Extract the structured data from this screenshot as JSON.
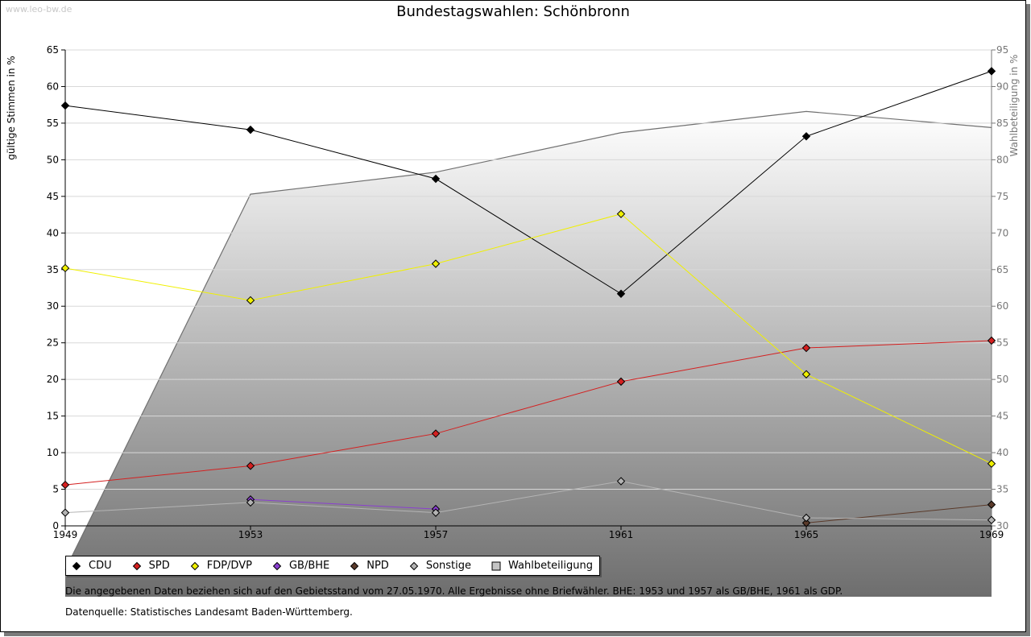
{
  "watermark": "www.leo-bw.de",
  "chart_data": {
    "type": "line",
    "title": "Bundestagswahlen: Schönbronn",
    "ylabel": "gültige Stimmen in %",
    "y2label": "Wahlbeteiligung in %",
    "ylim": [
      0,
      65
    ],
    "y2lim": [
      30,
      95
    ],
    "yticks": [
      0,
      5,
      10,
      15,
      20,
      25,
      30,
      35,
      40,
      45,
      50,
      55,
      60,
      65
    ],
    "y2ticks": [
      30,
      35,
      40,
      45,
      50,
      55,
      60,
      65,
      70,
      75,
      80,
      85,
      90,
      95
    ],
    "x": [
      "1949",
      "1953",
      "1957",
      "1961",
      "1965",
      "1969"
    ],
    "series": [
      {
        "name": "CDU",
        "color": "#000000",
        "axis": "left",
        "values": [
          57.4,
          54.1,
          47.4,
          31.7,
          53.2,
          62.1
        ]
      },
      {
        "name": "SPD",
        "color": "#d42020",
        "axis": "left",
        "values": [
          5.6,
          8.2,
          12.6,
          19.7,
          24.3,
          25.3
        ]
      },
      {
        "name": "FDP/DVP",
        "color": "#f0f000",
        "axis": "left",
        "values": [
          35.2,
          30.8,
          35.8,
          42.6,
          20.7,
          8.5
        ]
      },
      {
        "name": "GB/BHE",
        "color": "#8a3fd0",
        "axis": "left",
        "values": [
          null,
          3.6,
          2.3,
          null,
          null,
          null
        ]
      },
      {
        "name": "NPD",
        "color": "#5a3a2a",
        "axis": "left",
        "values": [
          null,
          null,
          null,
          null,
          0.4,
          2.9
        ]
      },
      {
        "name": "Sonstige",
        "color": "#b4b4b4",
        "axis": "left",
        "values": [
          1.8,
          3.2,
          1.8,
          6.1,
          1.1,
          0.8
        ]
      }
    ],
    "area": {
      "name": "Wahlbeteiligung",
      "axis": "right",
      "values": [
        24.0,
        75.3,
        78.3,
        83.7,
        86.6,
        84.4
      ]
    },
    "grid": true,
    "legend_position": "bottom"
  },
  "notes": {
    "line1": "Die angegebenen Daten beziehen sich auf den Gebietsstand vom 27.05.1970. Alle Ergebnisse ohne Briefwähler. BHE: 1953 und 1957 als GB/BHE, 1961 als GDP.",
    "line2": "Datenquelle: Statistisches Landesamt Baden-Württemberg."
  }
}
